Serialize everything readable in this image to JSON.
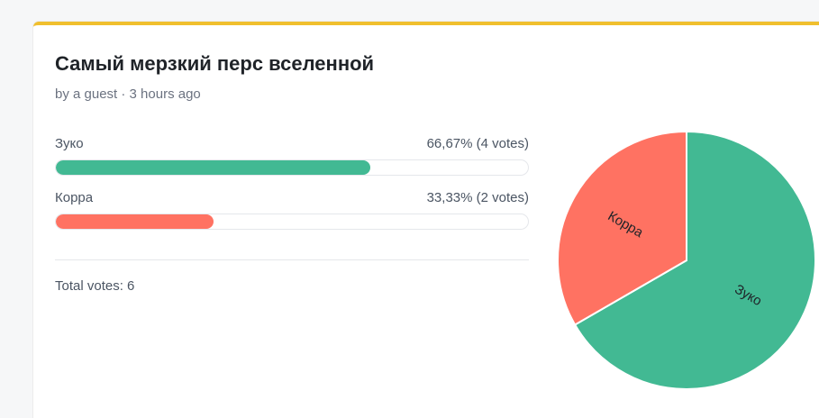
{
  "poll": {
    "title": "Самый мерзкий перс вселенной",
    "meta": "by a guest · 3 hours ago",
    "total_votes_label": "Total votes: 6",
    "accent_color": "#f0bf2e"
  },
  "options": [
    {
      "label": "Зуко",
      "result": "66,67% (4 votes)",
      "fraction": 0.6667,
      "color": "#42b993"
    },
    {
      "label": "Корра",
      "result": "33,33% (2 votes)",
      "fraction": 0.3333,
      "color": "#ff7262"
    }
  ],
  "chart_data": {
    "type": "pie",
    "categories": [
      "Зуко",
      "Корра"
    ],
    "values": [
      4,
      2
    ],
    "colors": [
      "#42b993",
      "#ff7262"
    ]
  }
}
